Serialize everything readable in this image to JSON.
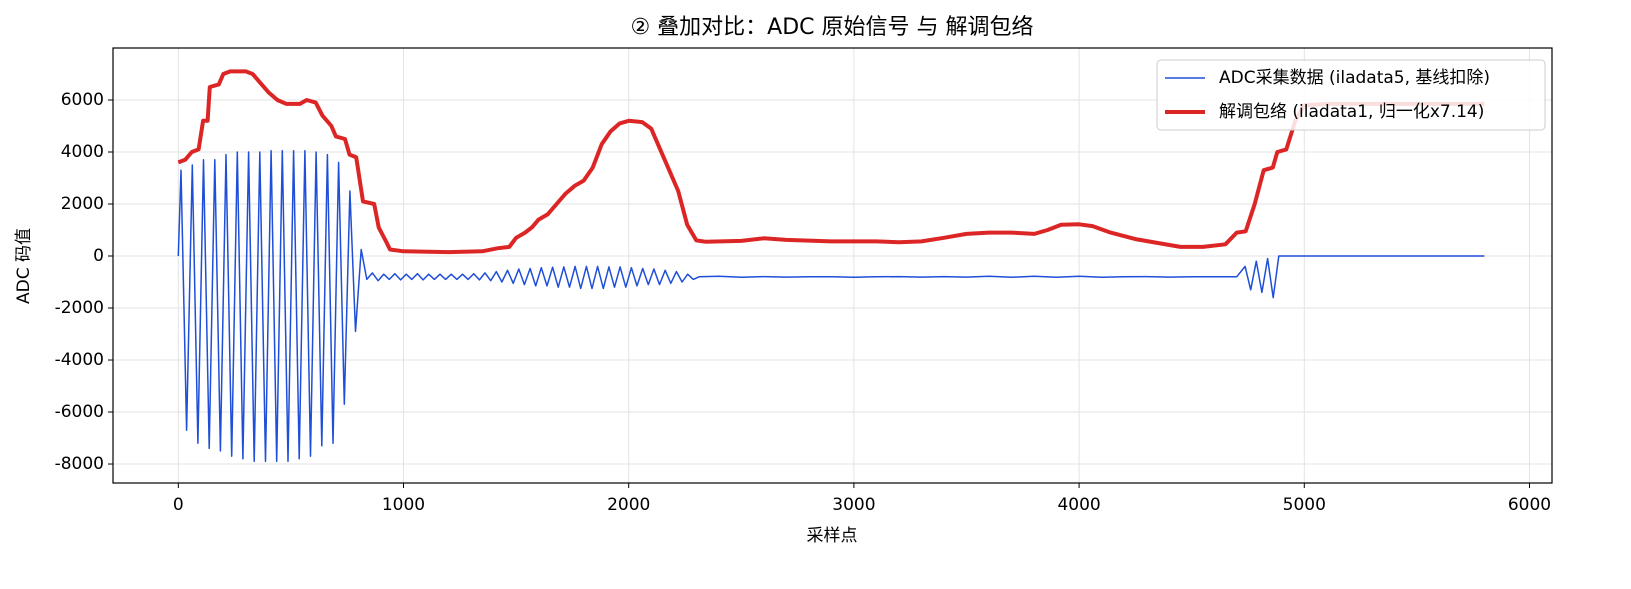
{
  "chart_data": {
    "type": "line",
    "title": "② 叠加对比：ADC 原始信号 与 解调包络",
    "xlabel": "采样点",
    "ylabel": "ADC 码值",
    "xlim": [
      -290,
      6100
    ],
    "xticks": [
      0,
      1000,
      2000,
      3000,
      4000,
      5000,
      6000
    ],
    "ylim": [
      -8730,
      8000
    ],
    "yticks": [
      -8000,
      -6000,
      -4000,
      -2000,
      0,
      2000,
      4000,
      6000
    ],
    "grid": true,
    "legend": "upper right",
    "series": [
      {
        "name": "ADC采集数据 (iladata5, 基线扣除)",
        "color": "#1f4fd8",
        "width": 1.5,
        "x": [
          0,
          12,
          37,
          62,
          87,
          112,
          137,
          162,
          187,
          212,
          237,
          262,
          287,
          312,
          337,
          362,
          387,
          412,
          437,
          462,
          487,
          512,
          537,
          562,
          587,
          612,
          637,
          662,
          687,
          712,
          737,
          762,
          787,
          812,
          837,
          862,
          887,
          912,
          937,
          962,
          987,
          1012,
          1037,
          1062,
          1087,
          1112,
          1137,
          1162,
          1187,
          1212,
          1237,
          1262,
          1287,
          1312,
          1337,
          1362,
          1387,
          1412,
          1437,
          1462,
          1487,
          1512,
          1537,
          1562,
          1587,
          1612,
          1637,
          1662,
          1687,
          1712,
          1737,
          1762,
          1787,
          1812,
          1837,
          1862,
          1887,
          1912,
          1937,
          1962,
          1987,
          2012,
          2037,
          2062,
          2087,
          2112,
          2137,
          2162,
          2187,
          2212,
          2237,
          2262,
          2287,
          2312,
          2400,
          2500,
          2600,
          2700,
          2800,
          2900,
          3000,
          3100,
          3200,
          3300,
          3400,
          3500,
          3600,
          3700,
          3800,
          3900,
          4000,
          4100,
          4200,
          4300,
          4400,
          4500,
          4600,
          4700,
          4737,
          4762,
          4787,
          4812,
          4837,
          4862,
          4887,
          5800
        ],
        "values": [
          0,
          3300,
          -6700,
          3500,
          -7200,
          3700,
          -7400,
          3700,
          -7500,
          3900,
          -7700,
          4000,
          -7800,
          4000,
          -7900,
          4000,
          -7900,
          4050,
          -7900,
          4050,
          -7900,
          4050,
          -7800,
          4050,
          -7700,
          4000,
          -7300,
          3900,
          -7200,
          3600,
          -5700,
          2500,
          -2900,
          250,
          -900,
          -650,
          -950,
          -700,
          -900,
          -680,
          -920,
          -700,
          -900,
          -680,
          -920,
          -700,
          -900,
          -700,
          -900,
          -700,
          -900,
          -700,
          -900,
          -680,
          -920,
          -650,
          -950,
          -600,
          -1000,
          -550,
          -1050,
          -500,
          -1100,
          -480,
          -1150,
          -450,
          -1150,
          -430,
          -1200,
          -420,
          -1200,
          -400,
          -1250,
          -400,
          -1250,
          -400,
          -1250,
          -420,
          -1200,
          -420,
          -1200,
          -450,
          -1150,
          -480,
          -1100,
          -500,
          -1100,
          -550,
          -1050,
          -600,
          -1000,
          -700,
          -900,
          -800,
          -780,
          -820,
          -790,
          -810,
          -800,
          -800,
          -820,
          -800,
          -790,
          -810,
          -790,
          -810,
          -780,
          -820,
          -780,
          -820,
          -780,
          -820,
          -800,
          -790,
          -810,
          -800,
          -800,
          -800,
          -400,
          -1300,
          -200,
          -1400,
          -100,
          -1600,
          0,
          0
        ]
      },
      {
        "name": "解调包络 (iladata1, 归一化x7.14)",
        "color": "#dc2626",
        "width": 4,
        "x": [
          0,
          30,
          60,
          90,
          110,
          130,
          140,
          180,
          200,
          230,
          300,
          330,
          360,
          400,
          440,
          480,
          540,
          570,
          610,
          640,
          680,
          700,
          740,
          760,
          790,
          820,
          870,
          890,
          920,
          940,
          1000,
          1200,
          1350,
          1420,
          1470,
          1500,
          1540,
          1570,
          1600,
          1640,
          1680,
          1720,
          1760,
          1800,
          1840,
          1880,
          1920,
          1960,
          2000,
          2060,
          2100,
          2140,
          2180,
          2220,
          2260,
          2300,
          2340,
          2500,
          2600,
          2700,
          2900,
          3100,
          3200,
          3300,
          3400,
          3500,
          3600,
          3700,
          3800,
          3860,
          3920,
          4000,
          4060,
          4140,
          4250,
          4350,
          4450,
          4550,
          4650,
          4700,
          4740,
          4780,
          4820,
          4860,
          4880,
          4920,
          4960,
          5000,
          5100,
          5800
        ],
        "values": [
          3600,
          3700,
          4000,
          4100,
          5200,
          5200,
          6500,
          6600,
          7000,
          7100,
          7100,
          7000,
          6700,
          6300,
          6000,
          5850,
          5850,
          6000,
          5900,
          5400,
          5000,
          4600,
          4500,
          3900,
          3800,
          2100,
          2000,
          1100,
          600,
          250,
          180,
          150,
          180,
          300,
          350,
          700,
          900,
          1100,
          1400,
          1600,
          2000,
          2400,
          2700,
          2900,
          3400,
          4300,
          4800,
          5100,
          5200,
          5150,
          4900,
          4100,
          3300,
          2500,
          1200,
          600,
          550,
          580,
          680,
          620,
          560,
          560,
          530,
          560,
          700,
          850,
          900,
          900,
          850,
          1000,
          1200,
          1220,
          1150,
          900,
          650,
          500,
          350,
          350,
          450,
          900,
          950,
          2000,
          3300,
          3400,
          4000,
          4100,
          5200,
          5800,
          5850,
          5850
        ]
      }
    ]
  }
}
